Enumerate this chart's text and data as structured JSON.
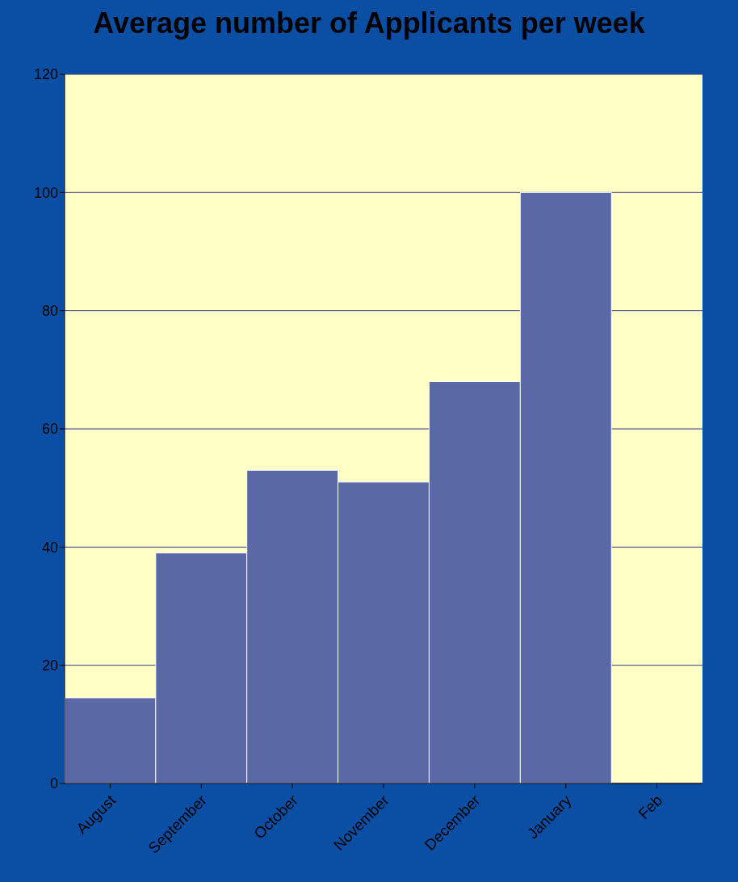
{
  "chart_data": {
    "type": "bar",
    "title": "Average number of Applicants per week",
    "categories": [
      "August",
      "September",
      "October",
      "November",
      "December",
      "January",
      "Feb"
    ],
    "values": [
      14.5,
      39,
      53,
      51,
      68,
      100,
      null
    ],
    "color": "#5a68a6",
    "ylim": [
      0,
      120
    ],
    "yticks": [
      0,
      20,
      40,
      60,
      80,
      100,
      120
    ],
    "grid": "y",
    "legend": false
  }
}
